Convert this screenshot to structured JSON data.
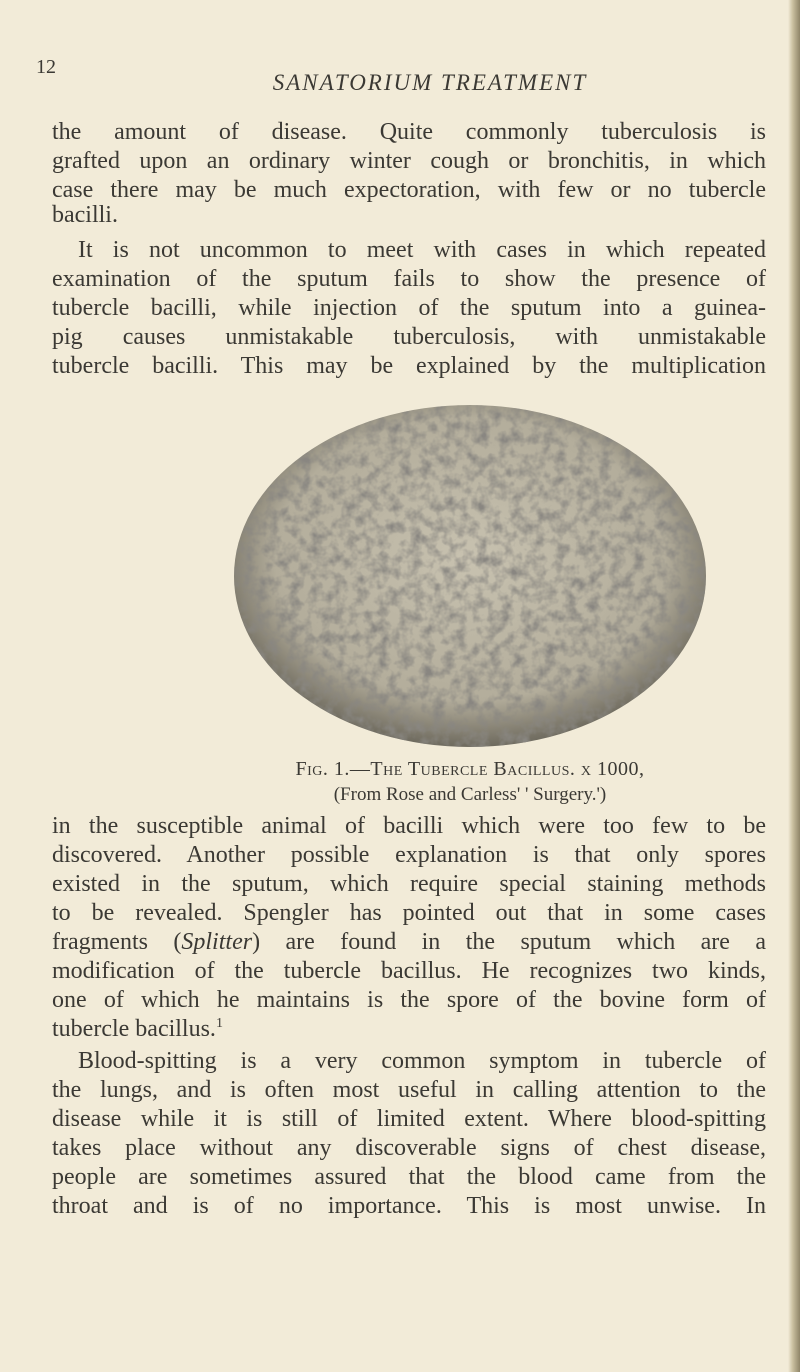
{
  "page_number": "12",
  "running_head": "SANATORIUM TREATMENT",
  "paragraphs": [
    {
      "lines": [
        "the amount of disease. Quite commonly tuberculosis is",
        "grafted upon an ordinary winter cough or bronchitis, in which",
        "case there may be much expectoration, with few or no tubercle",
        "bacilli."
      ]
    },
    {
      "lines": [
        "It is not uncommon to meet with cases in which repeated",
        "examination of the sputum fails to show the presence of",
        "tubercle bacilli, while injection of the sputum into a guinea-",
        "pig causes unmistakable tuberculosis, with unmistakable",
        "tubercle bacilli. This may be explained by the multiplication"
      ]
    },
    {
      "lines": [
        "in the susceptible animal of bacilli which were too few to be",
        "discovered. Another possible explanation is that only spores",
        "existed in the sputum, which require special staining methods",
        "to be revealed. Spengler has pointed out that in some cases",
        [
          "fragments (",
          "Splitter",
          ") are found in the sputum which are a"
        ],
        "modification of the tubercle bacillus. He recognizes two kinds,",
        "one of which he maintains is the spore of the bovine form of",
        [
          "tubercle bacillus.",
          "1"
        ]
      ]
    },
    {
      "lines": [
        "Blood-spitting is a very common symptom in tubercle of",
        "the lungs, and is often most useful in calling attention to the",
        "disease while it is still of limited extent. Where blood-spitting",
        "takes place without any discoverable signs of chest disease,",
        "people are sometimes assured that the blood came from the",
        "throat and is of no importance. This is most unwise. In"
      ]
    }
  ],
  "figure": {
    "caption": "Fig. 1.—The Tubercle Bacillus. x 1000,",
    "credit": "(From Rose and Carless' ' Surgery.')"
  }
}
